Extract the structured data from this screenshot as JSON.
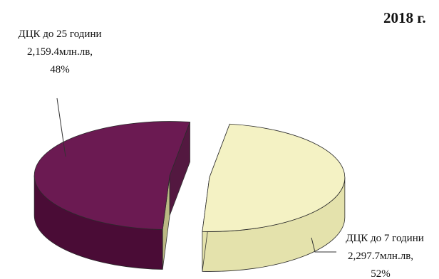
{
  "chart_data": {
    "type": "pie",
    "title": "2018 г.",
    "categories": [
      "ДЦК до 25 години",
      "ДЦК до 7 години"
    ],
    "values": [
      2159.4,
      2297.7
    ],
    "value_labels": [
      "2,159.4млн.лв,",
      "2,297.7млн.лв,"
    ],
    "percent_labels": [
      "48%",
      "52%"
    ],
    "colors": [
      "#f4f2c4",
      "#6b1a52"
    ],
    "side_colors": [
      "#e4e2ac",
      "#4a0c36"
    ],
    "style": "3d-exploded"
  }
}
